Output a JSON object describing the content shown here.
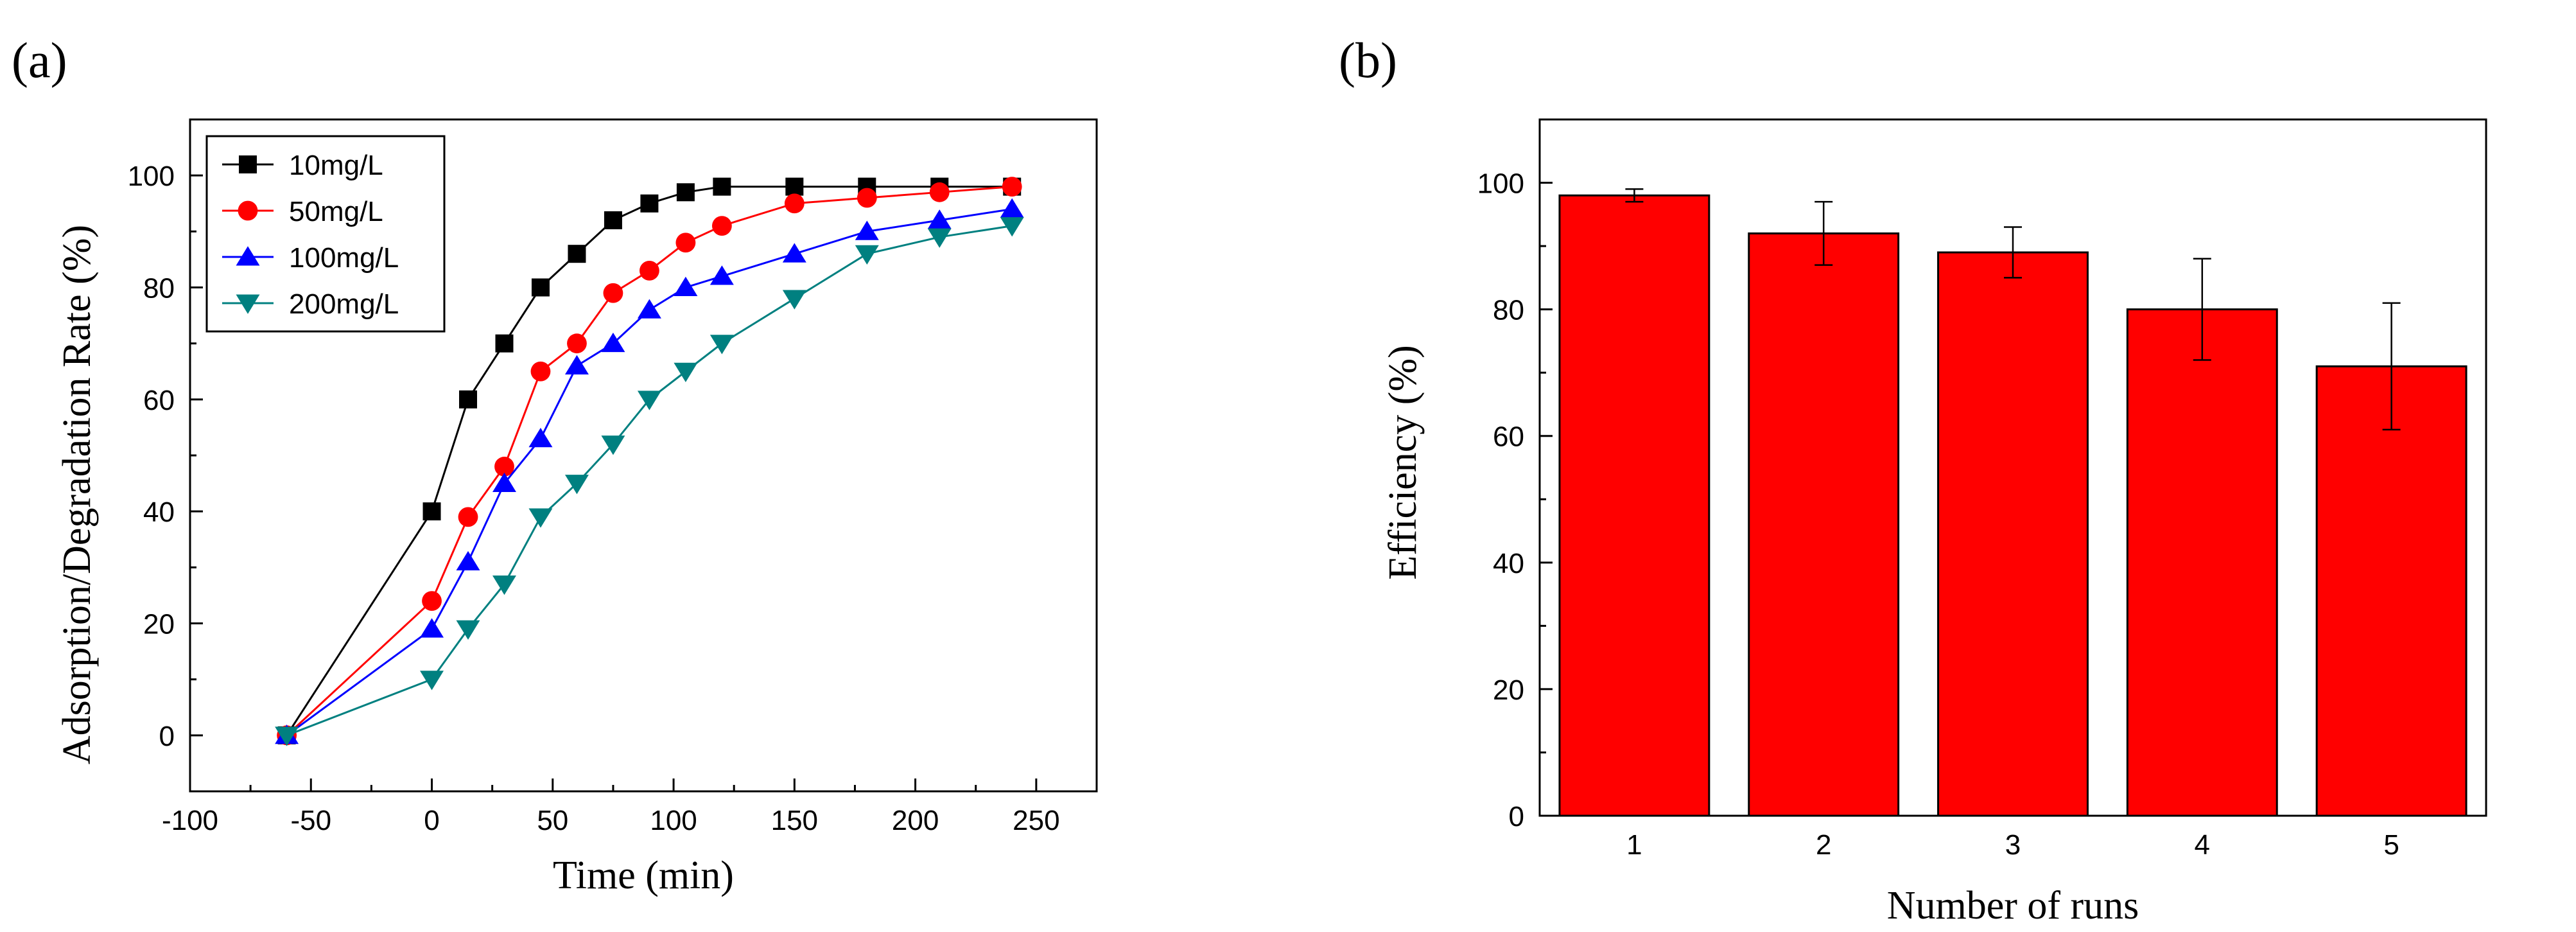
{
  "colors": {
    "axis": "#000000",
    "bar_fill": "#ff0000",
    "bar_stroke": "#000000",
    "series": [
      "#000000",
      "#ff0000",
      "#0000ff",
      "#008080"
    ]
  },
  "chart_data": [
    {
      "panel_label": "(a)",
      "type": "line",
      "xlabel": "Time (min)",
      "ylabel": "Adsorption/Degradation Rate (%)",
      "xlim": [
        -100,
        275
      ],
      "ylim": [
        -10,
        110
      ],
      "xticks": [
        -100,
        -50,
        0,
        50,
        100,
        150,
        200,
        250
      ],
      "yticks": [
        0,
        20,
        40,
        60,
        80,
        100
      ],
      "legend_position": "top-left",
      "series": [
        {
          "name": "10mg/L",
          "marker": "square",
          "color": "#000000",
          "x": [
            -60,
            0,
            15,
            30,
            45,
            60,
            75,
            90,
            105,
            120,
            150,
            180,
            210,
            240
          ],
          "y": [
            0,
            40,
            60,
            70,
            80,
            86,
            92,
            95,
            97,
            98,
            98,
            98,
            98,
            98
          ]
        },
        {
          "name": "50mg/L",
          "marker": "circle",
          "color": "#ff0000",
          "x": [
            -60,
            0,
            15,
            30,
            45,
            60,
            75,
            90,
            105,
            120,
            150,
            180,
            210,
            240
          ],
          "y": [
            0,
            24,
            39,
            48,
            65,
            70,
            79,
            83,
            88,
            91,
            95,
            96,
            97,
            98
          ]
        },
        {
          "name": "100mg/L",
          "marker": "triangle-up",
          "color": "#0000ff",
          "x": [
            -60,
            0,
            15,
            30,
            45,
            60,
            75,
            90,
            105,
            120,
            150,
            180,
            210,
            240
          ],
          "y": [
            0,
            19,
            31,
            45,
            53,
            66,
            70,
            76,
            80,
            82,
            86,
            90,
            92,
            94
          ]
        },
        {
          "name": "200mg/L",
          "marker": "triangle-down",
          "color": "#008080",
          "x": [
            -60,
            0,
            15,
            30,
            45,
            60,
            75,
            90,
            105,
            120,
            150,
            180,
            210,
            240
          ],
          "y": [
            0,
            10,
            19,
            27,
            39,
            45,
            52,
            60,
            65,
            70,
            78,
            86,
            89,
            91
          ]
        }
      ]
    },
    {
      "panel_label": "(b)",
      "type": "bar",
      "xlabel": "Number of runs",
      "ylabel": "Efficiency (%)",
      "ylim": [
        0,
        110
      ],
      "yticks": [
        0,
        20,
        40,
        60,
        80,
        100
      ],
      "categories": [
        "1",
        "2",
        "3",
        "4",
        "5"
      ],
      "values": [
        98,
        92,
        89,
        80,
        71
      ],
      "error": [
        1,
        5,
        4,
        8,
        10
      ]
    }
  ]
}
